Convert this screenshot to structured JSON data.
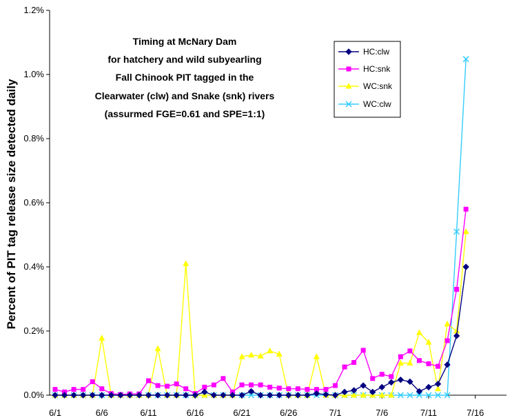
{
  "chart_data": {
    "type": "line",
    "title_lines": [
      "Timing at McNary Dam",
      "for hatchery and wild subyearling",
      "Fall Chinook PIT tagged in the",
      "Clearwater (clw) and Snake (snk) rivers",
      "(assurmed FGE=0.61 and SPE=1:1)"
    ],
    "xlabel": "",
    "ylabel": "Percent of PIT tag release size detected daily",
    "x_ticks": [
      "6/1",
      "6/6",
      "6/11",
      "6/16",
      "6/21",
      "6/26",
      "7/1",
      "7/6",
      "7/11",
      "7/16"
    ],
    "y_ticks": [
      "0.0%",
      "0.2%",
      "0.4%",
      "0.6%",
      "0.8%",
      "1.0%",
      "1.2%"
    ],
    "ylim": [
      0,
      1.2
    ],
    "y_unit": "percent",
    "grid": false,
    "legend_position": "top-right",
    "x": [
      "6/1",
      "6/2",
      "6/3",
      "6/4",
      "6/5",
      "6/6",
      "6/7",
      "6/8",
      "6/9",
      "6/10",
      "6/11",
      "6/12",
      "6/13",
      "6/14",
      "6/15",
      "6/16",
      "6/17",
      "6/18",
      "6/19",
      "6/20",
      "6/21",
      "6/22",
      "6/23",
      "6/24",
      "6/25",
      "6/26",
      "6/27",
      "6/28",
      "6/29",
      "6/30",
      "7/1",
      "7/2",
      "7/3",
      "7/4",
      "7/5",
      "7/6",
      "7/7",
      "7/8",
      "7/9",
      "7/10",
      "7/11",
      "7/12",
      "7/13",
      "7/14",
      "7/15"
    ],
    "series": [
      {
        "name": "HC:clw",
        "color": "#000080",
        "marker": "diamond",
        "values": [
          0,
          0,
          0,
          0,
          0,
          0,
          0,
          0,
          0,
          0,
          0,
          0,
          0,
          0,
          0,
          0,
          0.01,
          0,
          0,
          0,
          0,
          0.012,
          0,
          0,
          0,
          0,
          0,
          0,
          0.005,
          0.002,
          0,
          0.01,
          0.015,
          0.03,
          0.01,
          0.025,
          0.04,
          0.048,
          0.042,
          0.012,
          0.025,
          0.035,
          0.095,
          0.185,
          0.4
        ]
      },
      {
        "name": "HC:snk",
        "color": "#FF00FF",
        "marker": "square",
        "values": [
          0.018,
          0.01,
          0.018,
          0.018,
          0.042,
          0.02,
          0.005,
          0.002,
          0.004,
          0.004,
          0.045,
          0.03,
          0.028,
          0.035,
          0.02,
          0.005,
          0.025,
          0.032,
          0.052,
          0.01,
          0.032,
          0.032,
          0.032,
          0.025,
          0.022,
          0.02,
          0.02,
          0.018,
          0.018,
          0.018,
          0.03,
          0.088,
          0.102,
          0.14,
          0.052,
          0.065,
          0.058,
          0.12,
          0.138,
          0.108,
          0.098,
          0.09,
          0.17,
          0.33,
          0.58
        ]
      },
      {
        "name": "WC:snk",
        "color": "#FFFF00",
        "marker": "triangle",
        "values": [
          0,
          0,
          0,
          0,
          0,
          0.178,
          0,
          0,
          0,
          0,
          0,
          0.145,
          0,
          0,
          0.41,
          0,
          0,
          0,
          0,
          0,
          0.12,
          0.125,
          0.122,
          0.138,
          0.128,
          0,
          0,
          0,
          0.12,
          0,
          0,
          0,
          0,
          0,
          0,
          0,
          0,
          0.1,
          0.1,
          0.195,
          0.165,
          0.02,
          0.222,
          0.2,
          0.51
        ]
      },
      {
        "name": "WC:clw",
        "color": "#33CCFF",
        "marker": "x",
        "values": [
          0,
          0,
          0,
          0,
          0,
          0,
          0,
          0,
          0,
          0,
          0,
          0,
          0,
          0,
          0,
          0,
          0,
          0,
          0,
          0,
          0,
          0,
          0,
          0,
          0,
          0,
          0,
          0,
          0,
          0,
          0,
          0,
          0,
          0,
          0,
          0,
          0,
          0,
          0,
          0,
          0,
          0,
          0,
          0.51,
          1.048
        ]
      }
    ]
  }
}
